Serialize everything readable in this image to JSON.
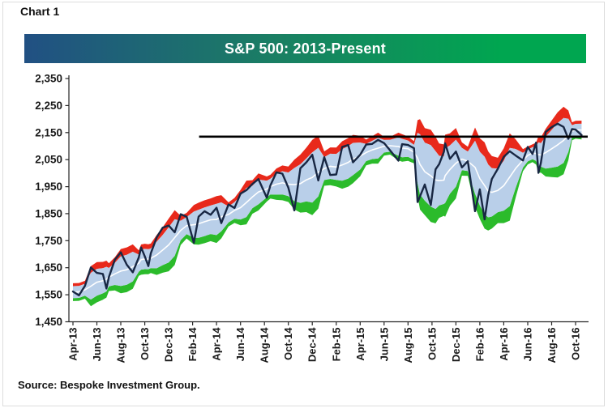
{
  "page": {
    "figure_label": "Chart 1",
    "source_note": "Source: Bespoke Investment Group."
  },
  "chart_data": {
    "type": "line",
    "title": "S&P 500: 2013-Present",
    "xlabel": "",
    "ylabel": "",
    "grid": false,
    "legend": "none",
    "title_bar_gradient": [
      "#215083",
      "#1a7f63",
      "#00a650"
    ],
    "colors": {
      "price_line": "#182743",
      "center_line": "#ffffff",
      "middle_band": "#b9cfe9",
      "upper_band": "#e8291b",
      "lower_band": "#2bbb2b",
      "reference_line": "#000000",
      "axis": "#262626"
    },
    "ylim": [
      1450,
      2350
    ],
    "y_tick_step": 100,
    "y_tick_labels": [
      "2,350",
      "2,250",
      "2,150",
      "2,050",
      "1,950",
      "1,850",
      "1,750",
      "1,650",
      "1,550",
      "1,450"
    ],
    "x_tick_labels": [
      "Apr-13",
      "Jun-13",
      "Aug-13",
      "Oct-13",
      "Dec-13",
      "Feb-14",
      "Apr-14",
      "Jun-14",
      "Aug-14",
      "Oct-14",
      "Dec-14",
      "Feb-15",
      "Apr-15",
      "Jun-15",
      "Aug-15",
      "Oct-15",
      "Dec-15",
      "Feb-16",
      "Apr-16",
      "Jun-16",
      "Aug-16",
      "Oct-16"
    ],
    "reference_line": {
      "value": 2135,
      "starts_at": "Feb-14"
    },
    "band_window_months": 2.4,
    "series_description": {
      "price_line": "S&P 500 daily price (dark navy)",
      "center_line": "white center line of trading band",
      "middle_band": "light blue middle band around center line",
      "upper_band": "red band above middle band",
      "lower_band": "green band below middle band"
    },
    "price_points": [
      [
        0,
        1562
      ],
      [
        0.5,
        1548
      ],
      [
        1,
        1583
      ],
      [
        1.5,
        1651
      ],
      [
        2,
        1631
      ],
      [
        2.5,
        1627
      ],
      [
        2.8,
        1573
      ],
      [
        3,
        1615
      ],
      [
        3.5,
        1680
      ],
      [
        4,
        1707
      ],
      [
        4.5,
        1661
      ],
      [
        5,
        1633
      ],
      [
        5.5,
        1688
      ],
      [
        5.7,
        1725
      ],
      [
        6,
        1692
      ],
      [
        6.3,
        1656
      ],
      [
        6.5,
        1703
      ],
      [
        7,
        1762
      ],
      [
        7.5,
        1798
      ],
      [
        8,
        1806
      ],
      [
        8.5,
        1781
      ],
      [
        9,
        1848
      ],
      [
        9.5,
        1839
      ],
      [
        10.1,
        1742
      ],
      [
        10.5,
        1839
      ],
      [
        11,
        1859
      ],
      [
        11.5,
        1846
      ],
      [
        12,
        1872
      ],
      [
        12.4,
        1815
      ],
      [
        13,
        1884
      ],
      [
        13.5,
        1871
      ],
      [
        14,
        1924
      ],
      [
        14.5,
        1937
      ],
      [
        15,
        1960
      ],
      [
        15.5,
        1978
      ],
      [
        16.2,
        1909
      ],
      [
        16.5,
        1955
      ],
      [
        17,
        2003
      ],
      [
        17.5,
        1998
      ],
      [
        18,
        1946
      ],
      [
        18.5,
        1862
      ],
      [
        19,
        2018
      ],
      [
        19.5,
        2040
      ],
      [
        20,
        2068
      ],
      [
        20.5,
        1973
      ],
      [
        21,
        2059
      ],
      [
        21.5,
        1993
      ],
      [
        22,
        1995
      ],
      [
        22.5,
        2097
      ],
      [
        23,
        2104
      ],
      [
        23.4,
        2040
      ],
      [
        24,
        2068
      ],
      [
        24.5,
        2106
      ],
      [
        25,
        2108
      ],
      [
        25.5,
        2123
      ],
      [
        26,
        2111
      ],
      [
        26.5,
        2084
      ],
      [
        27.2,
        2046
      ],
      [
        27.5,
        2107
      ],
      [
        28,
        2104
      ],
      [
        28.5,
        2092
      ],
      [
        28.8,
        1893
      ],
      [
        29,
        1914
      ],
      [
        29.4,
        1958
      ],
      [
        29.9,
        1882
      ],
      [
        30.3,
        2014
      ],
      [
        30.6,
        2033
      ],
      [
        31,
        2079
      ],
      [
        31.1,
        2110
      ],
      [
        31.5,
        2053
      ],
      [
        32,
        2080
      ],
      [
        32.5,
        2021
      ],
      [
        33,
        2044
      ],
      [
        33.6,
        1859
      ],
      [
        34,
        1940
      ],
      [
        34.4,
        1829
      ],
      [
        34.7,
        1918
      ],
      [
        35,
        1978
      ],
      [
        35.5,
        2016
      ],
      [
        36,
        2060
      ],
      [
        36.5,
        2081
      ],
      [
        37,
        2065
      ],
      [
        37.6,
        2047
      ],
      [
        38,
        2097
      ],
      [
        38.4,
        2071
      ],
      [
        38.7,
        2113
      ],
      [
        38.9,
        2001
      ],
      [
        39.1,
        2038
      ],
      [
        39.5,
        2152
      ],
      [
        40,
        2170
      ],
      [
        40.5,
        2183
      ],
      [
        41,
        2171
      ],
      [
        41.4,
        2127
      ],
      [
        41.7,
        2163
      ],
      [
        42,
        2161
      ],
      [
        42.5,
        2141
      ]
    ]
  }
}
